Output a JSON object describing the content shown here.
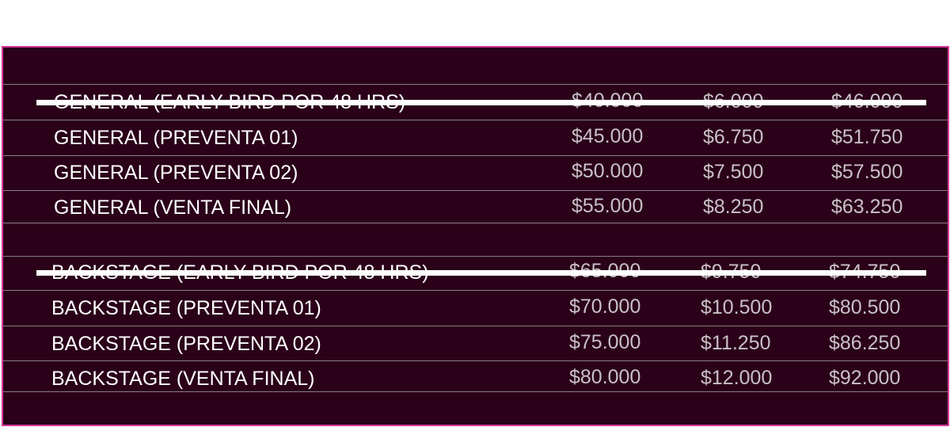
{
  "general": [
    {
      "name": "GENERAL (EARLY BIRD POR 48 HRS)",
      "price": "$40.000",
      "fee": "$6.000",
      "total": "$46.000",
      "struck": true
    },
    {
      "name": "GENERAL (PREVENTA 01)",
      "price": "$45.000",
      "fee": "$6.750",
      "total": "$51.750",
      "struck": false
    },
    {
      "name": "GENERAL (PREVENTA 02)",
      "price": "$50.000",
      "fee": "$7.500",
      "total": "$57.500",
      "struck": false
    },
    {
      "name": "GENERAL (VENTA FINAL)",
      "price": "$55.000",
      "fee": "$8.250",
      "total": "$63.250",
      "struck": false
    }
  ],
  "backstage": [
    {
      "name": "BACKSTAGE (EARLY BIRD POR 48 HRS)",
      "price": "$65.000",
      "fee": "$9.750",
      "total": "$74.750",
      "struck": true
    },
    {
      "name": "BACKSTAGE (PREVENTA 01)",
      "price": "$70.000",
      "fee": "$10.500",
      "total": "$80.500",
      "struck": false
    },
    {
      "name": "BACKSTAGE (PREVENTA 02)",
      "price": "$75.000",
      "fee": "$11.250",
      "total": "$86.250",
      "struck": false
    },
    {
      "name": "BACKSTAGE (VENTA FINAL)",
      "price": "$80.000",
      "fee": "$12.000",
      "total": "$92.000",
      "struck": false
    }
  ],
  "colors": {
    "panel_bg": "#2a0119",
    "panel_border": "#d63a9a",
    "row_divider": "#8c7d87",
    "name_text": "#ffffff",
    "price_text": "#c9c1c6",
    "strike_line": "#ffffff"
  }
}
